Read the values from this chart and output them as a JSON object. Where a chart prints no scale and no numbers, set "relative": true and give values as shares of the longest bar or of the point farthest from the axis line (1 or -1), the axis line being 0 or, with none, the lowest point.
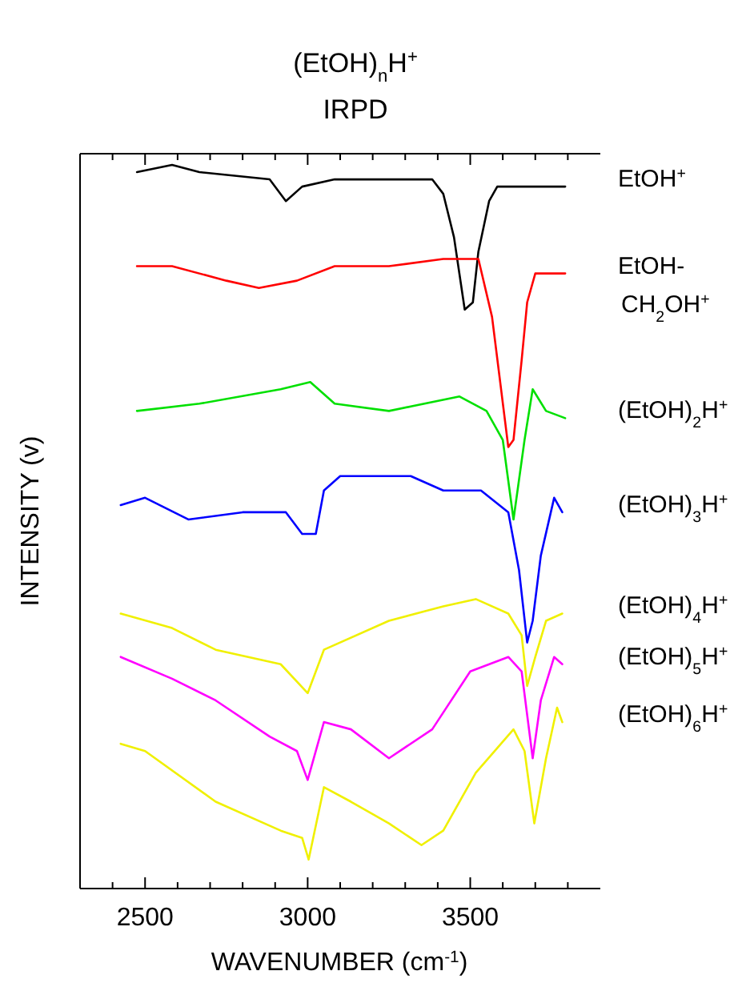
{
  "chart_data": {
    "type": "line",
    "relative": true,
    "title": "(EtOH)$_{n}$H$^{+}$",
    "subtitle": "IRPD",
    "xlabel": "WAVENUMBER (cm$^{-1}$)",
    "ylabel": "INTENSITY (v)",
    "xlim": [
      2300,
      3900
    ],
    "xticks": [
      {
        "value": 2400,
        "label": null
      },
      2500,
      {
        "value": 2600,
        "label": null
      },
      {
        "value": 2700,
        "label": null
      },
      {
        "value": 2800,
        "label": null
      },
      {
        "value": 2900,
        "label": null
      },
      3000,
      {
        "value": 3100,
        "label": null
      },
      {
        "value": 3200,
        "label": null
      },
      {
        "value": 3300,
        "label": null
      },
      {
        "value": 3400,
        "label": null
      },
      3500,
      {
        "value": 3600,
        "label": null
      },
      {
        "value": 3700,
        "label": null
      },
      {
        "value": 3800,
        "label": null
      }
    ],
    "line_style": "solid",
    "series": [
      {
        "name": "EtOH$^{+}$",
        "color": "#000000",
        "x": [
          2475,
          2583,
          2667,
          2883,
          2933,
          2983,
          3083,
          3250,
          3383,
          3417,
          3450,
          3483,
          3508,
          3525,
          3558,
          3583,
          3792
        ],
        "values": [
          0.99,
          1.0,
          0.99,
          0.98,
          0.95,
          0.97,
          0.98,
          0.98,
          0.98,
          0.96,
          0.9,
          0.8,
          0.81,
          0.88,
          0.95,
          0.97,
          0.97
        ]
      },
      {
        "name": "EtOH-CH$_{2}$OH$^{+}$",
        "color": "#ff0000",
        "x": [
          2475,
          2583,
          2750,
          2850,
          2967,
          3083,
          3250,
          3417,
          3483,
          3525,
          3567,
          3592,
          3617,
          3633,
          3658,
          3675,
          3700,
          3792
        ],
        "values": [
          0.86,
          0.86,
          0.84,
          0.83,
          0.84,
          0.86,
          0.86,
          0.87,
          0.87,
          0.87,
          0.79,
          0.7,
          0.61,
          0.62,
          0.73,
          0.81,
          0.85,
          0.85
        ]
      },
      {
        "name": "(EtOH)$_{2}$H$^{+}$",
        "color": "#00e000",
        "x": [
          2475,
          2667,
          2917,
          3008,
          3083,
          3250,
          3467,
          3550,
          3600,
          3633,
          3667,
          3692,
          3733,
          3792
        ],
        "values": [
          0.66,
          0.67,
          0.69,
          0.7,
          0.67,
          0.66,
          0.68,
          0.66,
          0.62,
          0.51,
          0.62,
          0.69,
          0.66,
          0.65
        ]
      },
      {
        "name": "(EtOH)$_{3}$H$^{+}$",
        "color": "#0000ff",
        "x": [
          2425,
          2500,
          2633,
          2800,
          2933,
          2983,
          3025,
          3050,
          3100,
          3200,
          3317,
          3417,
          3533,
          3617,
          3650,
          3675,
          3692,
          3717,
          3758,
          3783
        ],
        "values": [
          0.53,
          0.54,
          0.51,
          0.52,
          0.52,
          0.49,
          0.49,
          0.55,
          0.57,
          0.57,
          0.57,
          0.55,
          0.55,
          0.52,
          0.44,
          0.34,
          0.37,
          0.46,
          0.54,
          0.52
        ]
      },
      {
        "name": "(EtOH)$_{4}$H$^{+}$",
        "color": "#f0f000",
        "x": [
          2425,
          2583,
          2717,
          2917,
          3000,
          3050,
          3250,
          3417,
          3517,
          3617,
          3658,
          3675,
          3700,
          3733,
          3783
        ],
        "values": [
          0.38,
          0.36,
          0.33,
          0.31,
          0.27,
          0.33,
          0.37,
          0.39,
          0.4,
          0.38,
          0.35,
          0.28,
          0.32,
          0.37,
          0.38
        ]
      },
      {
        "name": "(EtOH)$_{5}$H$^{+}$",
        "color": "#ff00ff",
        "x": [
          2425,
          2583,
          2717,
          2883,
          2967,
          3000,
          3050,
          3133,
          3250,
          3383,
          3500,
          3617,
          3658,
          3692,
          3717,
          3758,
          3783
        ],
        "values": [
          0.32,
          0.29,
          0.26,
          0.21,
          0.19,
          0.15,
          0.23,
          0.22,
          0.18,
          0.22,
          0.3,
          0.32,
          0.3,
          0.18,
          0.26,
          0.32,
          0.31
        ]
      },
      {
        "name": "(EtOH)$_{6}$H$^{+}$",
        "color": "#f0f000",
        "x": [
          2425,
          2500,
          2717,
          2917,
          2983,
          3003,
          3050,
          3133,
          3250,
          3350,
          3417,
          3517,
          3633,
          3667,
          3697,
          3733,
          3767,
          3783
        ],
        "values": [
          0.2,
          0.19,
          0.12,
          0.08,
          0.07,
          0.04,
          0.14,
          0.12,
          0.09,
          0.06,
          0.08,
          0.16,
          0.22,
          0.19,
          0.09,
          0.18,
          0.25,
          0.23
        ]
      }
    ]
  }
}
